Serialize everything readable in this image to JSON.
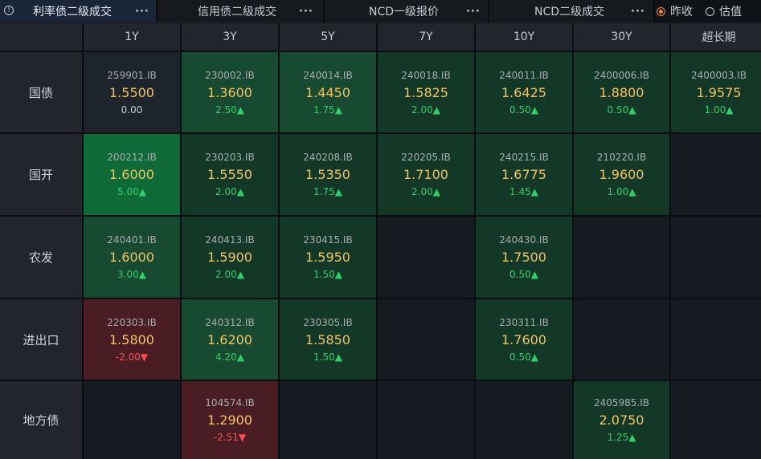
{
  "tabs": [
    {
      "label": "利率债二级成交",
      "more": "···",
      "active": true
    },
    {
      "label": "信用债二级成交",
      "more": "···",
      "active": false
    },
    {
      "label": "NCD一级报价",
      "more": "···",
      "active": false
    },
    {
      "label": "NCD二级成交",
      "more": "···",
      "active": false
    }
  ],
  "radios": [
    {
      "label": "昨收",
      "checked": true
    },
    {
      "label": "估值",
      "checked": false
    }
  ],
  "columns": [
    "1Y",
    "3Y",
    "5Y",
    "7Y",
    "10Y",
    "30Y",
    "超长期"
  ],
  "rows": [
    {
      "label": "国债",
      "cells": [
        {
          "code": "259901.IB",
          "yield": "1.5500",
          "change": "0.00",
          "dir": "flat",
          "tone": "neutral"
        },
        {
          "code": "230002.IB",
          "yield": "1.3600",
          "change": "2.50▲",
          "dir": "up",
          "tone": "g2"
        },
        {
          "code": "240014.IB",
          "yield": "1.4450",
          "change": "1.75▲",
          "dir": "up",
          "tone": "g2"
        },
        {
          "code": "240018.IB",
          "yield": "1.5825",
          "change": "2.00▲",
          "dir": "up",
          "tone": "g1"
        },
        {
          "code": "240011.IB",
          "yield": "1.6425",
          "change": "0.50▲",
          "dir": "up",
          "tone": "g1"
        },
        {
          "code": "2400006.IB",
          "yield": "1.8800",
          "change": "0.50▲",
          "dir": "up",
          "tone": "g1"
        },
        {
          "code": "2400003.IB",
          "yield": "1.9575",
          "change": "1.00▲",
          "dir": "up",
          "tone": "g1"
        }
      ]
    },
    {
      "label": "国开",
      "cells": [
        {
          "code": "200212.IB",
          "yield": "1.6000",
          "change": "5.00▲",
          "dir": "up",
          "tone": "g3"
        },
        {
          "code": "230203.IB",
          "yield": "1.5550",
          "change": "2.00▲",
          "dir": "up",
          "tone": "g1"
        },
        {
          "code": "240208.IB",
          "yield": "1.5350",
          "change": "1.75▲",
          "dir": "up",
          "tone": "g1"
        },
        {
          "code": "220205.IB",
          "yield": "1.7100",
          "change": "2.00▲",
          "dir": "up",
          "tone": "g1"
        },
        {
          "code": "240215.IB",
          "yield": "1.6775",
          "change": "1.45▲",
          "dir": "up",
          "tone": "g1"
        },
        {
          "code": "210220.IB",
          "yield": "1.9600",
          "change": "1.00▲",
          "dir": "up",
          "tone": "g1"
        },
        null
      ]
    },
    {
      "label": "农发",
      "cells": [
        {
          "code": "240401.IB",
          "yield": "1.6000",
          "change": "3.00▲",
          "dir": "up",
          "tone": "g2"
        },
        {
          "code": "240413.IB",
          "yield": "1.5900",
          "change": "2.00▲",
          "dir": "up",
          "tone": "g1"
        },
        {
          "code": "230415.IB",
          "yield": "1.5950",
          "change": "1.50▲",
          "dir": "up",
          "tone": "g1"
        },
        null,
        {
          "code": "240430.IB",
          "yield": "1.7500",
          "change": "0.50▲",
          "dir": "up",
          "tone": "g1"
        },
        null,
        null
      ]
    },
    {
      "label": "进出口",
      "cells": [
        {
          "code": "220303.IB",
          "yield": "1.5800",
          "change": "-2.00▼",
          "dir": "down",
          "tone": "red"
        },
        {
          "code": "240312.IB",
          "yield": "1.6200",
          "change": "4.20▲",
          "dir": "up",
          "tone": "g2"
        },
        {
          "code": "230305.IB",
          "yield": "1.5850",
          "change": "1.50▲",
          "dir": "up",
          "tone": "g1"
        },
        null,
        {
          "code": "230311.IB",
          "yield": "1.7600",
          "change": "0.50▲",
          "dir": "up",
          "tone": "g1"
        },
        null,
        null
      ]
    },
    {
      "label": "地方债",
      "cells": [
        null,
        {
          "code": "104574.IB",
          "yield": "1.2900",
          "change": "-2.51▼",
          "dir": "down",
          "tone": "red"
        },
        null,
        null,
        null,
        {
          "code": "2405985.IB",
          "yield": "2.0750",
          "change": "1.25▲",
          "dir": "up",
          "tone": "g1"
        },
        null
      ]
    }
  ],
  "colors": {
    "yield": "#f4c25a",
    "up": "#2fd06a",
    "down": "#ff4d4f",
    "radio_accent": "#f08a3a"
  },
  "icons": {
    "info": "info-circle-icon",
    "more": "more-dots-icon"
  }
}
